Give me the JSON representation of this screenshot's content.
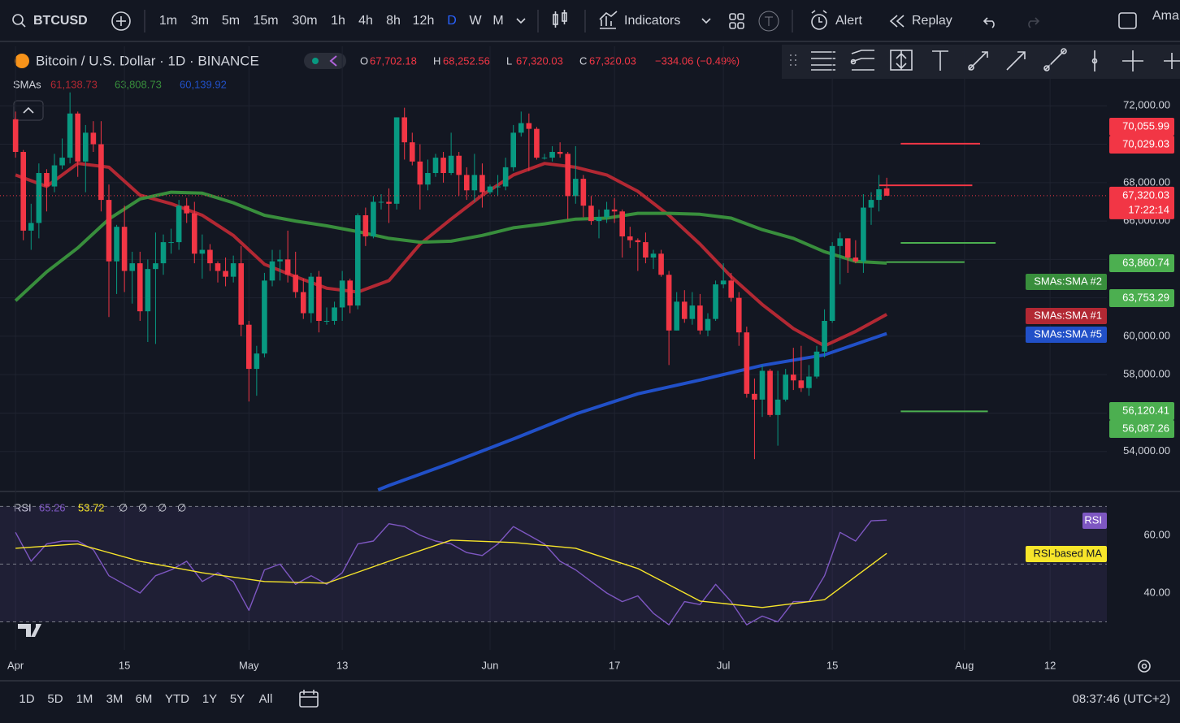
{
  "toolbar": {
    "symbol": "BTCUSD",
    "intervals": [
      "1m",
      "3m",
      "5m",
      "15m",
      "30m",
      "1h",
      "4h",
      "8h",
      "12h",
      "D",
      "W",
      "M"
    ],
    "active_interval": "D",
    "indicators": "Indicators",
    "alert": "Alert",
    "replay": "Replay",
    "account": "Ama"
  },
  "legend": {
    "title": "Bitcoin / U.S. Dollar · 1D · BINANCE",
    "ohlc": [
      [
        "O",
        "67,702.18"
      ],
      [
        "H",
        "68,252.56"
      ],
      [
        "L",
        "67,320.03"
      ],
      [
        "C",
        "67,320.03"
      ]
    ],
    "change": "−334.06 (−0.49%)",
    "sma_label": "SMAs",
    "sma_values": [
      "61,138.73",
      "63,808.73",
      "60,139.92"
    ]
  },
  "chart_data": {
    "type": "candlestick",
    "up_color": "#089981",
    "down_color": "#f23645",
    "grid": true,
    "xlim": [
      -2,
      140.3
    ],
    "xticks": [
      {
        "value": 0,
        "label": "Apr"
      },
      {
        "value": 14,
        "label": "15"
      },
      {
        "value": 30,
        "label": "May"
      },
      {
        "value": 42,
        "label": "13"
      },
      {
        "value": 61,
        "label": "Jun"
      },
      {
        "value": 77,
        "label": "17"
      },
      {
        "value": 91,
        "label": "Jul"
      },
      {
        "value": 105,
        "label": "15"
      },
      {
        "value": 122,
        "label": "Aug"
      },
      {
        "value": 133,
        "label": "12"
      }
    ],
    "ylim": [
      52000,
      75100
    ],
    "yticks": [
      {
        "value": 54000,
        "label": "54,000.00"
      },
      {
        "value": 56000,
        "label": "56,000.00"
      },
      {
        "value": 58000,
        "label": "58,000.00"
      },
      {
        "value": 60000,
        "label": "60,000.00"
      },
      {
        "value": 62000,
        "label": "62,000.00"
      },
      {
        "value": 64000,
        "label": "64,000.00"
      },
      {
        "value": 66000,
        "label": "66,000.00"
      },
      {
        "value": 68000,
        "label": "68,000.00"
      },
      {
        "value": 70000,
        "label": "70,000.00"
      },
      {
        "value": 72000,
        "label": "72,000.00"
      }
    ],
    "candles": [
      [
        71300,
        71700,
        69300,
        69600
      ],
      [
        69600,
        69700,
        65000,
        65500
      ],
      [
        65500,
        66900,
        64500,
        65900
      ],
      [
        65900,
        69000,
        65100,
        68500
      ],
      [
        68500,
        68700,
        66500,
        67800
      ],
      [
        67800,
        69500,
        67500,
        68900
      ],
      [
        68900,
        70300,
        68700,
        69300
      ],
      [
        69300,
        72700,
        69000,
        71600
      ],
      [
        71600,
        71700,
        68300,
        69100
      ],
      [
        69100,
        71000,
        67500,
        70600
      ],
      [
        70600,
        71200,
        69600,
        70000
      ],
      [
        70000,
        71200,
        66500,
        67100
      ],
      [
        67100,
        67900,
        61000,
        63900
      ],
      [
        63900,
        65800,
        62200,
        65700
      ],
      [
        65700,
        66800,
        62300,
        63400
      ],
      [
        63400,
        64400,
        61700,
        63800
      ],
      [
        63800,
        64400,
        60800,
        61300
      ],
      [
        61300,
        64000,
        59700,
        63500
      ],
      [
        63500,
        65400,
        59600,
        63800
      ],
      [
        63800,
        65300,
        63200,
        64900
      ],
      [
        64900,
        65600,
        64300,
        64900
      ],
      [
        64900,
        67100,
        64500,
        66800
      ],
      [
        66800,
        67200,
        65900,
        66400
      ],
      [
        66400,
        67000,
        63800,
        64300
      ],
      [
        64300,
        65300,
        63000,
        64500
      ],
      [
        64500,
        64800,
        63400,
        63800
      ],
      [
        63800,
        63900,
        62800,
        63400
      ],
      [
        63400,
        64100,
        62600,
        63100
      ],
      [
        63100,
        64200,
        62800,
        63800
      ],
      [
        63800,
        64700,
        60000,
        60600
      ],
      [
        60600,
        60800,
        56600,
        58300
      ],
      [
        58300,
        59500,
        56900,
        59100
      ],
      [
        59100,
        63300,
        58900,
        62900
      ],
      [
        62900,
        64500,
        62600,
        63900
      ],
      [
        63900,
        64500,
        62900,
        64000
      ],
      [
        64000,
        65500,
        62800,
        63200
      ],
      [
        63200,
        64400,
        62000,
        62300
      ],
      [
        62300,
        63000,
        60900,
        61200
      ],
      [
        61200,
        63300,
        60700,
        63100
      ],
      [
        63100,
        63400,
        60200,
        60800
      ],
      [
        60800,
        61500,
        60600,
        60800
      ],
      [
        60800,
        61800,
        60600,
        61500
      ],
      [
        61500,
        63400,
        60800,
        62900
      ],
      [
        62900,
        63000,
        61200,
        61600
      ],
      [
        61600,
        66400,
        61400,
        66300
      ],
      [
        66300,
        66700,
        64700,
        65200
      ],
      [
        65200,
        67300,
        65100,
        67000
      ],
      [
        67000,
        67400,
        66600,
        67000
      ],
      [
        67000,
        67700,
        65900,
        66900
      ],
      [
        66900,
        71400,
        66600,
        71400
      ],
      [
        71400,
        71900,
        69200,
        70100
      ],
      [
        70100,
        70600,
        68900,
        69100
      ],
      [
        69100,
        70000,
        66600,
        67900
      ],
      [
        67900,
        69200,
        67600,
        68500
      ],
      [
        68500,
        69500,
        68300,
        69300
      ],
      [
        69300,
        69600,
        68000,
        68500
      ],
      [
        68500,
        70600,
        68400,
        69400
      ],
      [
        69400,
        69600,
        67300,
        68400
      ],
      [
        68400,
        68800,
        67100,
        67600
      ],
      [
        67600,
        69500,
        67000,
        68400
      ],
      [
        68400,
        69000,
        66700,
        67500
      ],
      [
        67500,
        67900,
        67400,
        67800
      ],
      [
        67800,
        68400,
        67300,
        67800
      ],
      [
        67800,
        69300,
        67600,
        68800
      ],
      [
        68800,
        71000,
        68600,
        70600
      ],
      [
        70600,
        71700,
        70400,
        71100
      ],
      [
        71100,
        71600,
        68600,
        70800
      ],
      [
        70800,
        70900,
        69200,
        69300
      ],
      [
        69300,
        69500,
        69200,
        69300
      ],
      [
        69300,
        69900,
        69100,
        69600
      ],
      [
        69600,
        70100,
        69300,
        69500
      ],
      [
        69500,
        69600,
        66100,
        67300
      ],
      [
        67300,
        69900,
        66900,
        68200
      ],
      [
        68200,
        68400,
        66200,
        66800
      ],
      [
        66800,
        67300,
        65800,
        66000
      ],
      [
        66000,
        66600,
        65100,
        66200
      ],
      [
        66200,
        67000,
        65900,
        66600
      ],
      [
        66600,
        67200,
        65900,
        66500
      ],
      [
        66500,
        66600,
        64100,
        65200
      ],
      [
        65200,
        65700,
        64600,
        65000
      ],
      [
        65000,
        65100,
        63400,
        64900
      ],
      [
        64900,
        65400,
        63800,
        64100
      ],
      [
        64100,
        64500,
        63500,
        64300
      ],
      [
        64300,
        64500,
        63100,
        63200
      ],
      [
        63200,
        63400,
        58500,
        60300
      ],
      [
        60300,
        62300,
        60300,
        61800
      ],
      [
        61800,
        62400,
        60700,
        60900
      ],
      [
        60900,
        62300,
        60600,
        61600
      ],
      [
        61600,
        62200,
        60100,
        60300
      ],
      [
        60300,
        61200,
        60000,
        60900
      ],
      [
        60900,
        62900,
        60800,
        62700
      ],
      [
        62700,
        63800,
        62500,
        62900
      ],
      [
        62900,
        63300,
        61800,
        62000
      ],
      [
        62000,
        62300,
        59500,
        60200
      ],
      [
        60200,
        60500,
        56800,
        57000
      ],
      [
        57000,
        57800,
        53600,
        56700
      ],
      [
        56700,
        58500,
        55800,
        58200
      ],
      [
        58200,
        58300,
        55800,
        55900
      ],
      [
        55900,
        58200,
        54300,
        56700
      ],
      [
        56700,
        58300,
        56600,
        58000
      ],
      [
        58000,
        59400,
        57200,
        57700
      ],
      [
        57700,
        59500,
        57100,
        57300
      ],
      [
        57300,
        58500,
        56900,
        57900
      ],
      [
        57900,
        59500,
        57800,
        59200
      ],
      [
        59200,
        61400,
        58900,
        60800
      ],
      [
        60800,
        64900,
        60700,
        64700
      ],
      [
        64700,
        65400,
        62700,
        65100
      ],
      [
        65100,
        65100,
        63300,
        64100
      ],
      [
        64100,
        65000,
        63800,
        63900
      ],
      [
        63900,
        67400,
        63300,
        66700
      ],
      [
        66700,
        67500,
        65800,
        67100
      ],
      [
        67100,
        68400,
        66500,
        67654.09
      ],
      [
        67702.18,
        68252.56,
        67320.03,
        67320.03
      ]
    ],
    "series": [
      {
        "name": "SMAs:SMA #1",
        "color": "#b22833",
        "x": [
          0,
          4,
          8,
          12,
          16,
          20,
          24,
          28,
          32,
          36,
          40,
          44,
          48,
          52,
          56,
          60,
          64,
          68,
          72,
          76,
          80,
          84,
          88,
          92,
          96,
          100,
          104,
          108,
          112
        ],
        "values": [
          68400,
          67800,
          69000,
          68800,
          67350,
          66900,
          66300,
          65250,
          63750,
          63100,
          62500,
          62300,
          62900,
          64800,
          66100,
          67350,
          68400,
          69000,
          68800,
          68400,
          67550,
          66300,
          64800,
          63100,
          61650,
          60400,
          59500,
          60250,
          61138.73
        ]
      },
      {
        "name": "SMAs:SMA #2",
        "color": "#388e3c",
        "x": [
          0,
          4,
          8,
          12,
          16,
          20,
          24,
          28,
          32,
          36,
          40,
          44,
          48,
          52,
          56,
          60,
          64,
          68,
          72,
          76,
          80,
          84,
          88,
          92,
          96,
          100,
          104,
          108,
          112
        ],
        "values": [
          61850,
          63350,
          64600,
          66100,
          67150,
          67500,
          67450,
          66950,
          66300,
          66000,
          65750,
          65450,
          65100,
          64900,
          64950,
          65250,
          65650,
          65850,
          66100,
          66150,
          66400,
          66400,
          66350,
          66150,
          65550,
          65100,
          64400,
          63900,
          63808.73
        ]
      },
      {
        "name": "SMAs:SMA #5",
        "color": "#2150c8",
        "x": [
          46.6,
          48,
          56,
          64,
          72,
          80,
          88,
          96,
          104,
          112
        ],
        "values": [
          52000,
          52230,
          53400,
          54650,
          55950,
          57000,
          57720,
          58480,
          59030,
          60139.92
        ]
      }
    ],
    "last_price": 67320.03,
    "last_price_label": "67,320.03",
    "countdown": "17:22:14",
    "drawings": [
      {
        "price": 70029.03,
        "start": 113.8,
        "end": 124,
        "color": "#f23645"
      },
      {
        "price": 67860,
        "start": 111,
        "end": 123,
        "color": "#f23645"
      },
      {
        "price": 64860,
        "start": 113.8,
        "end": 126,
        "color": "#4caf50"
      },
      {
        "price": 63860.74,
        "start": 111.9,
        "end": 122,
        "color": "#4caf50"
      },
      {
        "price": 56087.26,
        "start": 113.8,
        "end": 125,
        "color": "#4caf50"
      }
    ],
    "badges": [
      {
        "text": "70,055.99",
        "color": "#f23645"
      },
      {
        "text": "70,029.03",
        "color": "#f23645"
      },
      {
        "text": "63,860.74",
        "color": "#4caf50"
      },
      {
        "text": "63,753.29",
        "color": "#4caf50"
      },
      {
        "text": "56,120.41",
        "color": "#4caf50"
      },
      {
        "text": "56,087.26",
        "color": "#4caf50"
      }
    ],
    "series_tags": [
      "SMAs:SMA #2",
      "SMAs:SMA #1",
      "SMAs:SMA #5"
    ]
  },
  "rsi": {
    "type": "line",
    "label": "RSI",
    "legend_values": [
      "65.26",
      "53.72"
    ],
    "legend_extra": [
      "∅",
      "∅",
      "∅",
      "∅"
    ],
    "ylim": [
      20.3,
      74.6
    ],
    "yticks": [
      {
        "value": 40,
        "label": "40.00"
      },
      {
        "value": 60,
        "label": "60.00"
      }
    ],
    "bands": [
      70,
      50,
      30
    ],
    "series": [
      {
        "name": "RSI",
        "color": "#7e57c2",
        "x": [
          0,
          2,
          4,
          6,
          8,
          10,
          12,
          14,
          16,
          18,
          20,
          22,
          24,
          26,
          28,
          30,
          32,
          34,
          36,
          38,
          40,
          42,
          44,
          46,
          48,
          50,
          52,
          54,
          56,
          58,
          60,
          62,
          64,
          66,
          68,
          70,
          72,
          74,
          76,
          78,
          80,
          82,
          84,
          86,
          88,
          90,
          92,
          94,
          96,
          98,
          100,
          102,
          104,
          106,
          108,
          110,
          112
        ],
        "values": [
          61,
          51,
          57,
          58,
          58,
          55,
          46,
          43,
          40,
          46,
          48,
          51,
          44,
          47,
          44,
          34,
          48,
          50,
          43,
          46,
          43,
          47,
          57,
          58,
          64,
          63,
          60,
          58,
          57,
          54,
          53,
          57,
          63,
          60,
          57,
          51,
          48,
          44,
          40,
          37,
          39,
          33,
          29,
          37,
          36,
          43,
          37,
          29,
          32,
          30,
          37,
          37,
          46,
          61,
          58,
          65,
          65.26
        ]
      },
      {
        "name": "RSI-based MA",
        "color": "#f7e52a",
        "x": [
          0,
          8,
          16,
          24,
          32,
          40,
          48,
          56,
          64,
          72,
          80,
          88,
          96,
          104,
          112
        ],
        "values": [
          55.5,
          57,
          51,
          47,
          44,
          43.4,
          51,
          58.3,
          57.5,
          55.5,
          48.5,
          37.2,
          35,
          37.7,
          53.72
        ]
      }
    ]
  },
  "range_bar": {
    "ranges": [
      "1D",
      "5D",
      "1M",
      "3M",
      "6M",
      "YTD",
      "1Y",
      "5Y",
      "All"
    ],
    "clock": "08:37:46 (UTC+2)"
  }
}
